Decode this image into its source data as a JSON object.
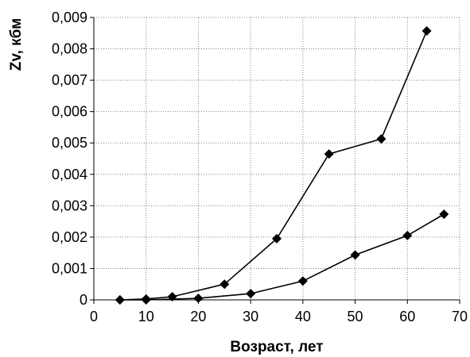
{
  "chart_data": {
    "type": "line",
    "title": "",
    "xlabel": "Возраст, лет",
    "ylabel": "Zv, кбм",
    "xlim": [
      0,
      70
    ],
    "ylim": [
      0,
      0.009
    ],
    "x_ticks": [
      0,
      10,
      20,
      30,
      40,
      50,
      60,
      70
    ],
    "y_ticks": [
      0,
      0.001,
      0.002,
      0.003,
      0.004,
      0.005,
      0.006,
      0.007,
      0.008,
      0.009
    ],
    "x_tick_labels": [
      "0",
      "10",
      "20",
      "30",
      "40",
      "50",
      "60",
      "70"
    ],
    "y_tick_labels": [
      "0",
      "0,001",
      "0,002",
      "0,003",
      "0,004",
      "0,005",
      "0,006",
      "0,007",
      "0,008",
      "0,009"
    ],
    "grid": true,
    "grid_style": "dotted",
    "legend": "none",
    "marker": "diamond",
    "series": [
      {
        "x": [
          5,
          10,
          15,
          25,
          35,
          45,
          55,
          63.7
        ],
        "y": [
          0,
          3e-05,
          0.0001,
          0.0005,
          0.00195,
          0.00465,
          0.00513,
          0.00857
        ]
      },
      {
        "x": [
          5,
          10,
          20,
          30,
          40,
          50,
          60,
          67
        ],
        "y": [
          0,
          0,
          5e-05,
          0.0002,
          0.0006,
          0.00143,
          0.00205,
          0.00273
        ]
      }
    ],
    "colors": {
      "line": "#000000",
      "marker": "#000000",
      "grid": "#808080"
    }
  }
}
